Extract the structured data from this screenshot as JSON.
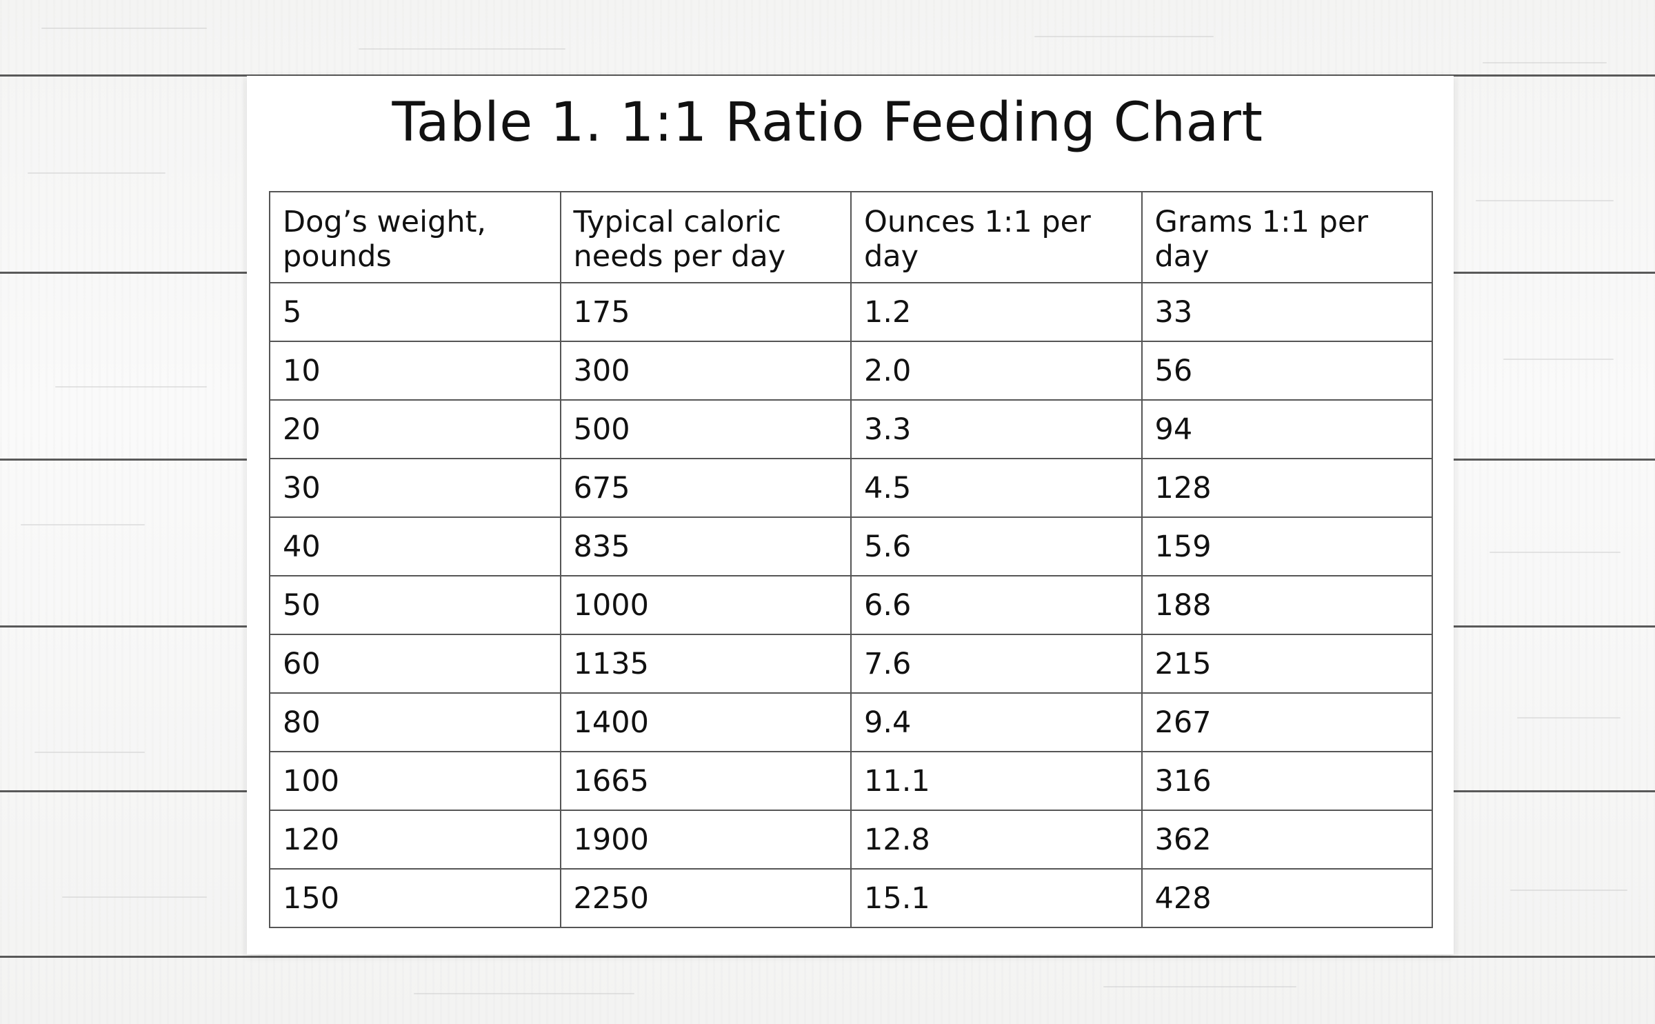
{
  "chart_data": {
    "type": "table",
    "title": "Table 1. 1:1 Ratio Feeding Chart",
    "columns": [
      "Dog’s weight, pounds",
      "Typical caloric needs per day",
      "Ounces 1:1 per day",
      "Grams 1:1 per day"
    ],
    "rows": [
      [
        "5",
        "175",
        "1.2",
        "33"
      ],
      [
        "10",
        "300",
        "2.0",
        "56"
      ],
      [
        "20",
        "500",
        "3.3",
        "94"
      ],
      [
        "30",
        "675",
        "4.5",
        "128"
      ],
      [
        "40",
        "835",
        "5.6",
        "159"
      ],
      [
        "50",
        "1000",
        "6.6",
        "188"
      ],
      [
        "60",
        "1135",
        "7.6",
        "215"
      ],
      [
        "80",
        "1400",
        "9.4",
        "267"
      ],
      [
        "100",
        "1665",
        "11.1",
        "316"
      ],
      [
        "120",
        "1900",
        "12.8",
        "362"
      ],
      [
        "150",
        "2250",
        "15.1",
        "428"
      ]
    ]
  }
}
